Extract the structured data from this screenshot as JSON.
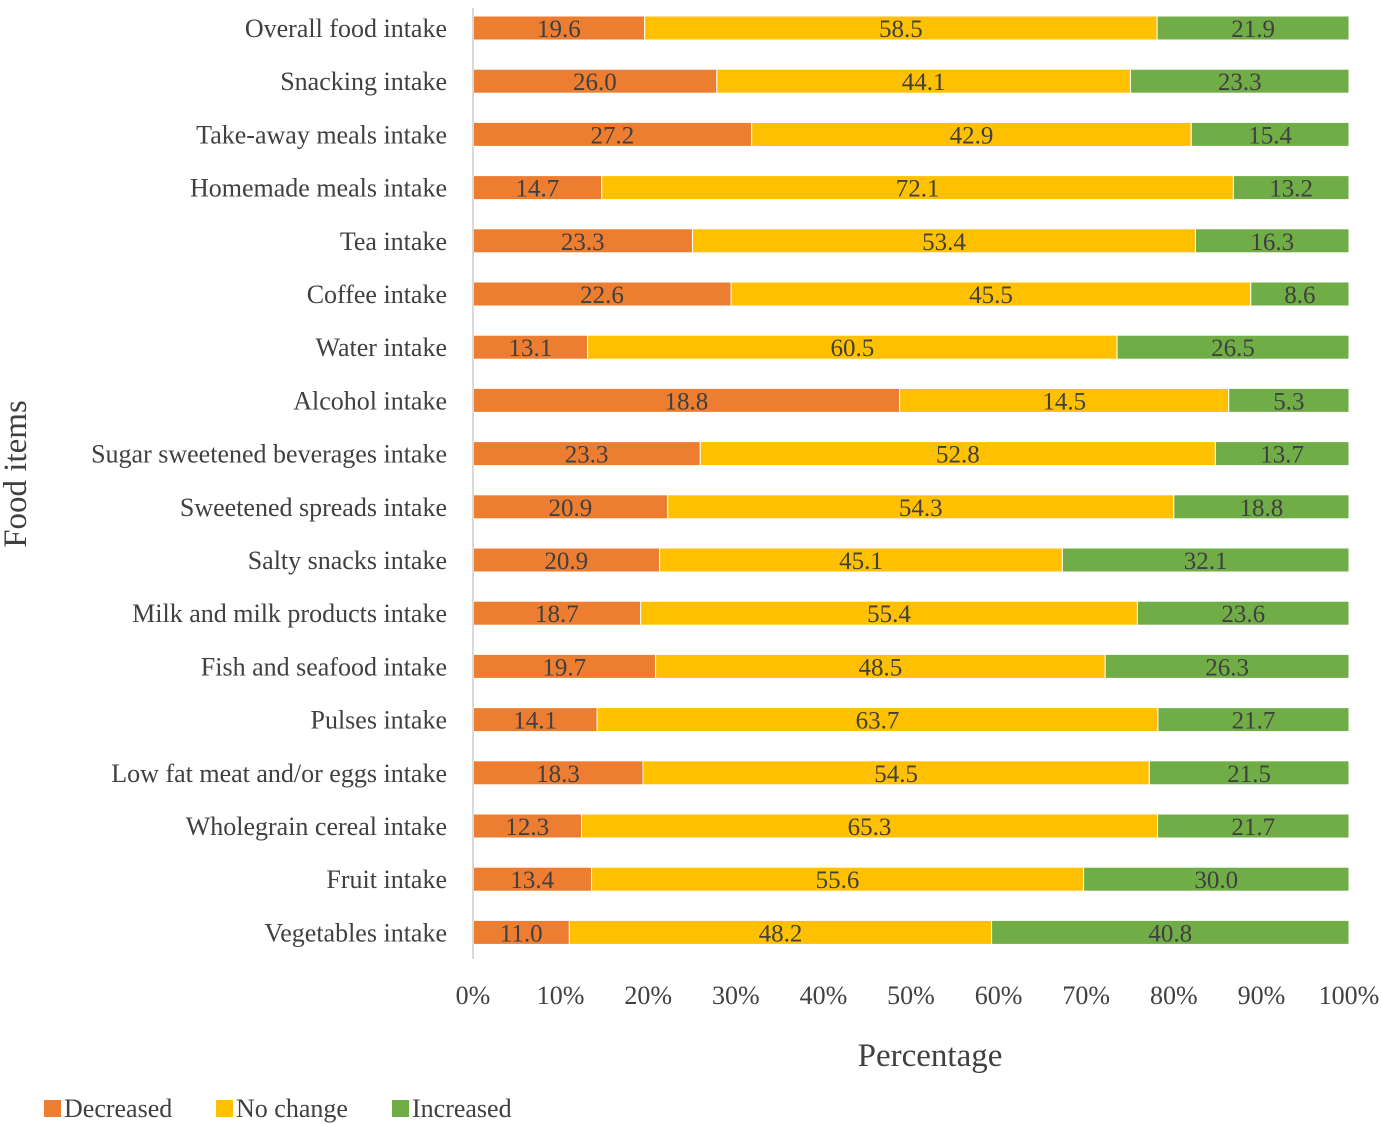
{
  "chart_data": {
    "type": "bar",
    "orientation": "horizontal",
    "stacked": "percent",
    "title": "",
    "xlabel": "Percentage",
    "ylabel": "Food items",
    "xlim": [
      0,
      100
    ],
    "xticks": [
      "0%",
      "10%",
      "20%",
      "30%",
      "40%",
      "50%",
      "60%",
      "70%",
      "80%",
      "90%",
      "100%"
    ],
    "categories": [
      "Overall food intake",
      "Snacking intake",
      "Take-away meals intake",
      "Homemade meals intake",
      "Tea intake",
      "Coffee intake",
      "Water intake",
      "Alcohol intake",
      "Sugar sweetened beverages intake",
      "Sweetened spreads intake",
      "Salty snacks intake",
      "Milk and milk products intake",
      "Fish and seafood intake",
      "Pulses intake",
      "Low fat meat and/or eggs intake",
      "Wholegrain cereal intake",
      "Fruit intake",
      "Vegetables intake"
    ],
    "series": [
      {
        "name": "Decreased",
        "color": "#ED7D31",
        "values": [
          19.6,
          26.0,
          27.2,
          14.7,
          23.3,
          22.6,
          13.1,
          18.8,
          23.3,
          20.9,
          20.9,
          18.7,
          19.7,
          14.1,
          18.3,
          12.3,
          13.4,
          11.0
        ],
        "labels": [
          "19.6",
          "26.0",
          "27.2",
          "14.7",
          "23.3",
          "22.6",
          "13.1",
          "18.8",
          "23.3",
          "20.9",
          "20.9",
          "18.7",
          "19.7",
          "14.1",
          "18.3",
          "12.3",
          "13.4",
          "11.0"
        ]
      },
      {
        "name": "No change",
        "color": "#FFC000",
        "values": [
          58.5,
          44.1,
          42.9,
          72.1,
          53.4,
          45.5,
          60.5,
          14.5,
          52.8,
          54.3,
          45.1,
          55.4,
          48.5,
          63.7,
          54.5,
          65.3,
          55.6,
          48.2
        ],
        "labels": [
          "58.5",
          "44.1",
          "42.9",
          "72.1",
          "53.4",
          "45.5",
          "60.5",
          "14.5",
          "52.8",
          "54.3",
          "45.1",
          "55.4",
          "48.5",
          "63.7",
          "54.5",
          "65.3",
          "55.6",
          "48.2"
        ]
      },
      {
        "name": "Increased",
        "color": "#70AD47",
        "values": [
          21.9,
          23.3,
          15.4,
          13.2,
          16.3,
          8.6,
          26.5,
          5.3,
          13.7,
          18.8,
          32.1,
          23.6,
          26.3,
          21.7,
          21.5,
          21.7,
          30.0,
          40.8
        ],
        "labels": [
          "21.9",
          "23.3",
          "15.4",
          "13.2",
          "16.3",
          "8.6",
          "26.5",
          "5.3",
          "13.7",
          "18.8",
          "32.1",
          "23.6",
          "26.3",
          "21.7",
          "21.5",
          "21.7",
          "30.0",
          "40.8"
        ]
      }
    ],
    "legend_position": "bottom-left",
    "grid": false
  }
}
